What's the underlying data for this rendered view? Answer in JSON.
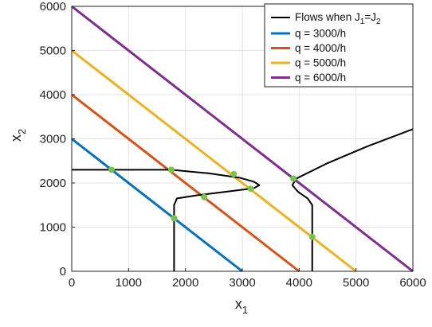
{
  "chart_data": {
    "type": "line",
    "title": "",
    "xlabel": {
      "base": "x",
      "sub": "1"
    },
    "ylabel": {
      "base": "x",
      "sub": "2"
    },
    "xlim": [
      0,
      6000
    ],
    "ylim": [
      0,
      6000
    ],
    "xticks": [
      0,
      1000,
      2000,
      3000,
      4000,
      5000,
      6000
    ],
    "yticks": [
      0,
      1000,
      2000,
      3000,
      4000,
      5000,
      6000
    ],
    "grid": true,
    "legend_position": "top-right",
    "series": [
      {
        "name": "q = 3000/h",
        "color": "#0072BD",
        "x": [
          0,
          3000
        ],
        "y": [
          3000,
          0
        ]
      },
      {
        "name": "q = 4000/h",
        "color": "#D95319",
        "x": [
          0,
          4000
        ],
        "y": [
          4000,
          0
        ]
      },
      {
        "name": "q = 5000/h",
        "color": "#EDB120",
        "x": [
          0,
          5000
        ],
        "y": [
          5000,
          0
        ]
      },
      {
        "name": "q = 6000/h",
        "color": "#7E2F8E",
        "x": [
          0,
          6000
        ],
        "y": [
          6000,
          0
        ]
      }
    ],
    "equal_cost_curve": {
      "legend": {
        "prefix": "Flows when J",
        "sub1": "1",
        "eq": "=J",
        "sub2": "2"
      },
      "color": "#000000",
      "segments": [
        {
          "x": [
            0,
            700,
            1750,
            2400,
            2950,
            3200,
            3300,
            3200,
            2700,
            2200,
            1850,
            1800,
            1800
          ],
          "y": [
            2300,
            2300,
            2300,
            2220,
            2120,
            2030,
            1950,
            1880,
            1800,
            1720,
            1650,
            1500,
            0
          ]
        },
        {
          "x": [
            4230,
            4230,
            4150,
            3980,
            3880,
            3950,
            4500,
            5200,
            6000
          ],
          "y": [
            0,
            1500,
            1650,
            1800,
            1950,
            2100,
            2450,
            2830,
            3220
          ]
        }
      ]
    },
    "intersection_points": {
      "color": "#77C44B",
      "x": [
        700,
        1800,
        1750,
        2330,
        2850,
        3150,
        3900,
        4230
      ],
      "y": [
        2300,
        1200,
        2300,
        1680,
        2200,
        1870,
        2100,
        780
      ]
    }
  }
}
